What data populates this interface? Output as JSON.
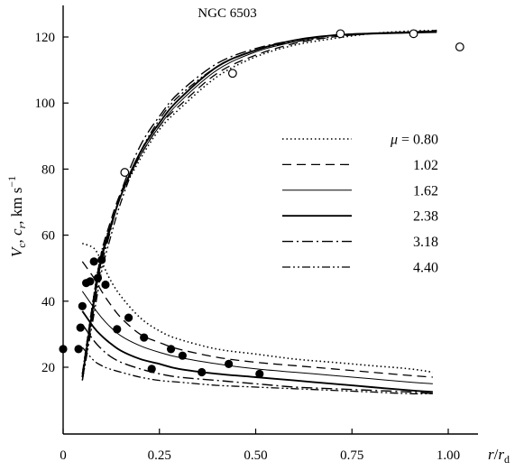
{
  "chart_data": {
    "type": "line",
    "title": "NGC 6503",
    "xlabel": "r/r_d",
    "ylabel": "V_c, c_r, km s^-1",
    "xlim": [
      0,
      1.05
    ],
    "ylim": [
      11,
      128
    ],
    "x_ticks": [
      {
        "value": 0,
        "label": "0"
      },
      {
        "value": 0.25,
        "label": "0.25"
      },
      {
        "value": 0.5,
        "label": "0.50"
      },
      {
        "value": 0.75,
        "label": "0.75"
      },
      {
        "value": 1.0,
        "label": "1.00"
      }
    ],
    "y_ticks": [
      {
        "value": 20,
        "label": "20"
      },
      {
        "value": 40,
        "label": "40"
      },
      {
        "value": 60,
        "label": "60"
      },
      {
        "value": 80,
        "label": "80"
      },
      {
        "value": 100,
        "label": "100"
      },
      {
        "value": 120,
        "label": "120"
      }
    ],
    "legend": {
      "placement": "right-center",
      "entries": [
        {
          "label": "μ = 0.80",
          "style": "dotted"
        },
        {
          "label": "1.02",
          "style": "dashed"
        },
        {
          "label": "1.62",
          "style": "solid-thin"
        },
        {
          "label": "2.38",
          "style": "solid-thick"
        },
        {
          "label": "3.18",
          "style": "dash-dot"
        },
        {
          "label": "4.40",
          "style": "dash-dot-dot"
        }
      ]
    },
    "rotation_curves": [
      {
        "style": "dotted",
        "x": [
          0.05,
          0.08,
          0.1,
          0.12,
          0.15,
          0.2,
          0.25,
          0.3,
          0.4,
          0.5,
          0.6,
          0.7,
          0.8,
          0.9,
          0.97
        ],
        "y": [
          18,
          42,
          55,
          62,
          72,
          83,
          92,
          98,
          108,
          114,
          117.5,
          119.5,
          121,
          121.8,
          122
        ]
      },
      {
        "style": "dashed",
        "x": [
          0.05,
          0.08,
          0.1,
          0.12,
          0.15,
          0.2,
          0.25,
          0.3,
          0.4,
          0.5,
          0.6,
          0.7,
          0.8,
          0.9,
          0.97
        ],
        "y": [
          18,
          42,
          55,
          63,
          73,
          84,
          93,
          99,
          109,
          114.5,
          118,
          120,
          121,
          121.5,
          122
        ]
      },
      {
        "style": "solid-thin",
        "x": [
          0.05,
          0.08,
          0.1,
          0.12,
          0.15,
          0.2,
          0.25,
          0.3,
          0.4,
          0.5,
          0.6,
          0.7,
          0.8,
          0.9,
          0.97
        ],
        "y": [
          17,
          41,
          54,
          62,
          72,
          84,
          93,
          100,
          110,
          115.5,
          118.5,
          120.5,
          121.2,
          121.5,
          121.8
        ]
      },
      {
        "style": "solid-thick",
        "x": [
          0.05,
          0.08,
          0.1,
          0.12,
          0.15,
          0.2,
          0.25,
          0.3,
          0.4,
          0.5,
          0.6,
          0.7,
          0.8,
          0.9,
          0.97
        ],
        "y": [
          17,
          40,
          53,
          61,
          72,
          85,
          94,
          101,
          111,
          116,
          119,
          120.5,
          121,
          121.3,
          121.5
        ]
      },
      {
        "style": "dash-dot",
        "x": [
          0.05,
          0.08,
          0.1,
          0.12,
          0.15,
          0.2,
          0.25,
          0.3,
          0.4,
          0.5,
          0.6,
          0.7,
          0.8,
          0.9,
          0.97
        ],
        "y": [
          16,
          38,
          51,
          60,
          73,
          87,
          96,
          103,
          112,
          116.5,
          119,
          120.5,
          121,
          121.3,
          121.5
        ]
      },
      {
        "style": "dash-dot-dot",
        "x": [
          0.05,
          0.08,
          0.1,
          0.12,
          0.15,
          0.2,
          0.25,
          0.3,
          0.4,
          0.5,
          0.6,
          0.7,
          0.8,
          0.9,
          0.97
        ],
        "y": [
          16,
          36,
          49,
          58,
          70,
          85,
          95,
          102,
          111,
          116,
          118.5,
          120,
          121,
          121.5,
          121.8
        ]
      }
    ],
    "dispersion_curves": [
      {
        "style": "dotted",
        "x": [
          0.05,
          0.08,
          0.1,
          0.12,
          0.15,
          0.2,
          0.25,
          0.3,
          0.4,
          0.5,
          0.6,
          0.7,
          0.8,
          0.9,
          0.96
        ],
        "y": [
          57.5,
          56,
          52,
          47,
          41.5,
          35,
          31,
          28.5,
          25.5,
          24,
          22.5,
          21.5,
          20.5,
          19.5,
          18.5
        ]
      },
      {
        "style": "dashed",
        "x": [
          0.05,
          0.08,
          0.1,
          0.12,
          0.15,
          0.2,
          0.25,
          0.3,
          0.4,
          0.5,
          0.6,
          0.7,
          0.8,
          0.9,
          0.96
        ],
        "y": [
          52,
          47,
          43,
          39.5,
          35,
          30,
          27.5,
          25.5,
          23,
          21.5,
          20.5,
          19.5,
          18.5,
          17.5,
          17
        ]
      },
      {
        "style": "solid-thin",
        "x": [
          0.05,
          0.08,
          0.1,
          0.12,
          0.15,
          0.2,
          0.25,
          0.3,
          0.4,
          0.5,
          0.6,
          0.7,
          0.8,
          0.9,
          0.96
        ],
        "y": [
          43,
          38,
          35,
          32.5,
          29.5,
          26.5,
          24.5,
          23,
          21,
          19.5,
          18.5,
          17.5,
          16.5,
          15.5,
          15
        ]
      },
      {
        "style": "solid-thick",
        "x": [
          0.05,
          0.08,
          0.1,
          0.12,
          0.15,
          0.2,
          0.25,
          0.3,
          0.4,
          0.5,
          0.6,
          0.7,
          0.8,
          0.9,
          0.96
        ],
        "y": [
          37,
          32,
          29.5,
          27.5,
          25,
          22.5,
          21,
          19.5,
          18,
          17,
          16,
          15,
          14,
          13,
          12.5
        ]
      },
      {
        "style": "dash-dot",
        "x": [
          0.05,
          0.08,
          0.1,
          0.12,
          0.15,
          0.2,
          0.25,
          0.3,
          0.4,
          0.5,
          0.6,
          0.7,
          0.8,
          0.9,
          0.96
        ],
        "y": [
          33,
          28,
          25.5,
          23.5,
          21.5,
          19.5,
          18,
          17,
          16,
          15,
          14,
          13.5,
          13,
          12.5,
          12
        ]
      },
      {
        "style": "dash-dot-dot",
        "x": [
          0.05,
          0.08,
          0.1,
          0.12,
          0.15,
          0.2,
          0.25,
          0.3,
          0.4,
          0.5,
          0.6,
          0.7,
          0.8,
          0.9,
          0.96
        ],
        "y": [
          26,
          22,
          20.5,
          19.5,
          18.5,
          17,
          16,
          15.5,
          14.5,
          14,
          13.5,
          13,
          12.5,
          12,
          12
        ]
      }
    ],
    "observed_rotation": {
      "marker": "open-circle",
      "x": [
        0.16,
        0.44,
        0.72,
        0.91,
        1.03
      ],
      "y": [
        79,
        109,
        121,
        121,
        117
      ]
    },
    "observed_dispersion": {
      "marker": "filled-circle",
      "x": [
        0.0,
        0.04,
        0.045,
        0.05,
        0.06,
        0.07,
        0.08,
        0.09,
        0.1,
        0.11,
        0.14,
        0.17,
        0.21,
        0.23,
        0.28,
        0.31,
        0.36,
        0.43,
        0.51
      ],
      "y": [
        25.5,
        25.5,
        32,
        38.5,
        45.5,
        46,
        52,
        47,
        52.5,
        45,
        31.5,
        35,
        29,
        19.5,
        25.5,
        23.5,
        18.5,
        21,
        18
      ]
    }
  }
}
